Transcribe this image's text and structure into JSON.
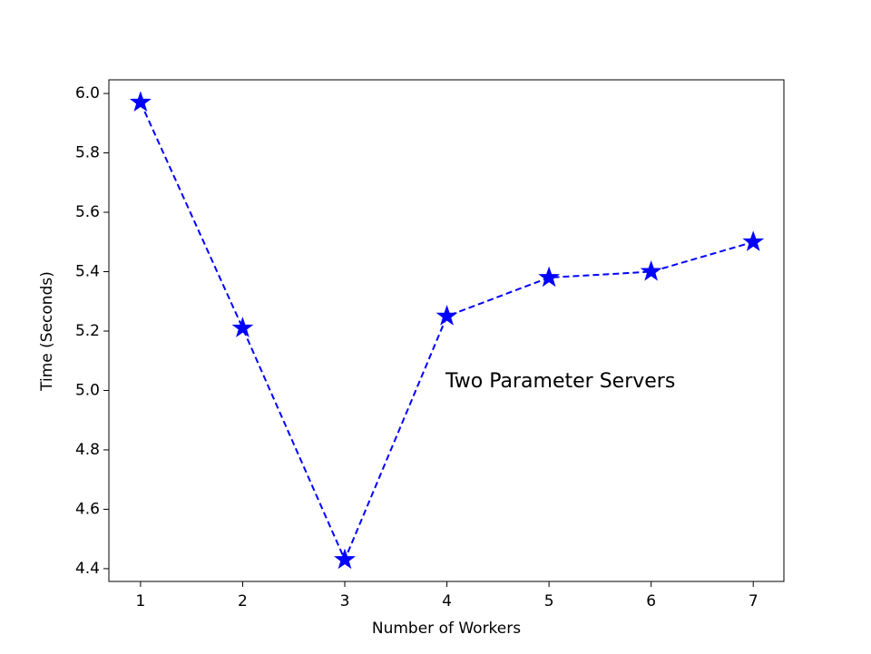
{
  "chart_data": {
    "type": "line",
    "x_label": "Number of Workers",
    "y_label": "Time (Seconds)",
    "annotation": "Two Parameter Servers",
    "x": [
      1,
      2,
      3,
      4,
      5,
      6,
      7
    ],
    "series": [
      {
        "name": "Time",
        "color": "#0000ff",
        "values": [
          5.97,
          5.21,
          4.43,
          5.25,
          5.38,
          5.4,
          5.5
        ]
      }
    ],
    "xlim": [
      0.69,
      7.3
    ],
    "ylim": [
      4.357,
      6.046
    ],
    "xticks": [
      1,
      2,
      3,
      4,
      5,
      6,
      7
    ],
    "yticks": [
      {
        "value": 4.4,
        "label": "4.4"
      },
      {
        "value": 4.6,
        "label": "4.6"
      },
      {
        "value": 4.8,
        "label": "4.8"
      },
      {
        "value": 5.0,
        "label": "5.0"
      },
      {
        "value": 5.2,
        "label": "5.2"
      },
      {
        "value": 5.4,
        "label": "5.4"
      },
      {
        "value": 5.6,
        "label": "5.6"
      },
      {
        "value": 5.8,
        "label": "5.8"
      },
      {
        "value": 6.0,
        "label": "6.0"
      }
    ],
    "line_style": "dashed",
    "marker": "star",
    "grid": false
  }
}
